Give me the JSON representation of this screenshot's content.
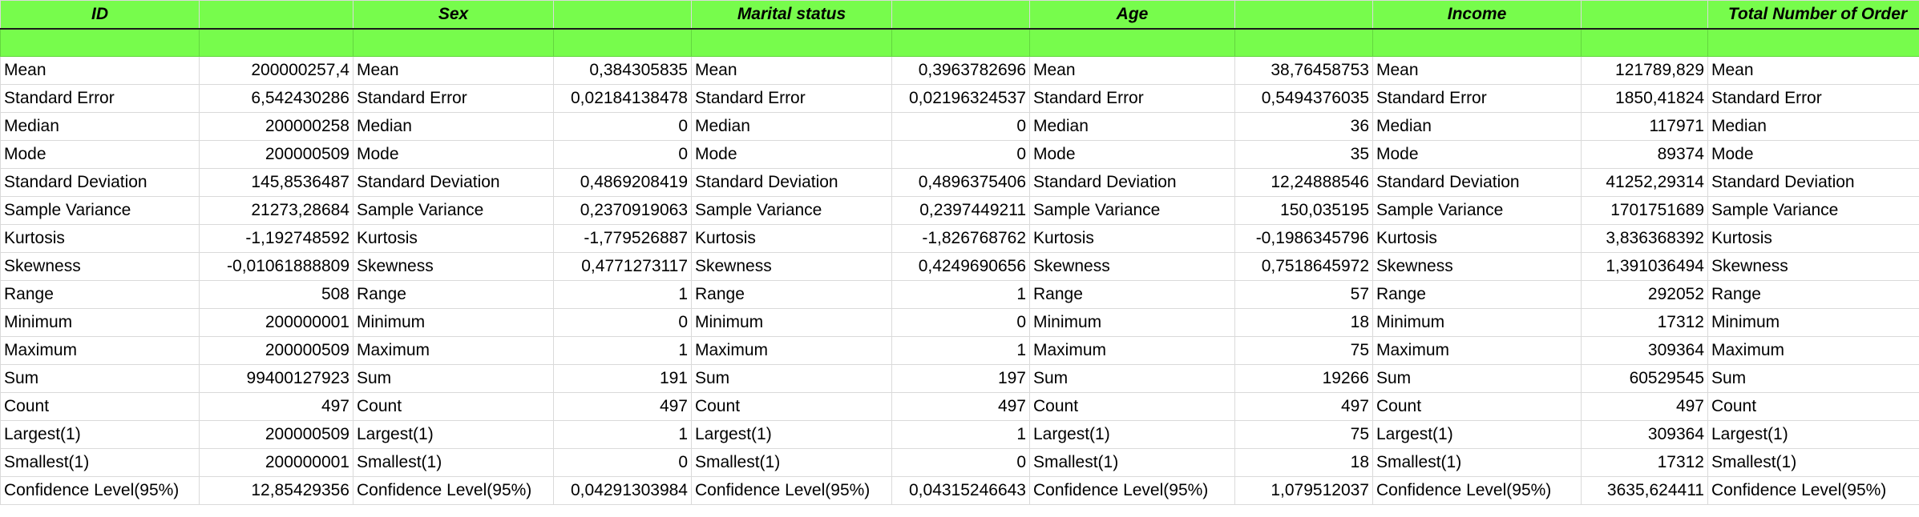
{
  "header": [
    "ID",
    "",
    "Sex",
    "",
    "Marital status",
    "",
    "Age",
    "",
    "Income",
    "",
    "Total Number of Order"
  ],
  "stat_labels": [
    "Mean",
    "Standard Error",
    "Median",
    "Mode",
    "Standard Deviation",
    "Sample Variance",
    "Kurtosis",
    "Skewness",
    "Range",
    "Minimum",
    "Maximum",
    "Sum",
    "Count",
    "Largest(1)",
    "Smallest(1)",
    "Confidence Level(95%)"
  ],
  "rows": [
    [
      "200000257,4",
      "0,384305835",
      "0,3963782696",
      "38,76458753",
      "121789,829"
    ],
    [
      "6,542430286",
      "0,02184138478",
      "0,02196324537",
      "0,5494376035",
      "1850,41824"
    ],
    [
      "200000258",
      "0",
      "0",
      "36",
      "117971"
    ],
    [
      "200000509",
      "0",
      "0",
      "35",
      "89374"
    ],
    [
      "145,8536487",
      "0,4869208419",
      "0,4896375406",
      "12,24888546",
      "41252,29314"
    ],
    [
      "21273,28684",
      "0,2370919063",
      "0,2397449211",
      "150,035195",
      "1701751689"
    ],
    [
      "-1,192748592",
      "-1,779526887",
      "-1,826768762",
      "-0,1986345796",
      "3,836368392"
    ],
    [
      "-0,01061888809",
      "0,4771273117",
      "0,4249690656",
      "0,7518645972",
      "1,391036494"
    ],
    [
      "508",
      "1",
      "1",
      "57",
      "292052"
    ],
    [
      "200000001",
      "0",
      "0",
      "18",
      "17312"
    ],
    [
      "200000509",
      "1",
      "1",
      "75",
      "309364"
    ],
    [
      "99400127923",
      "191",
      "197",
      "19266",
      "60529545"
    ],
    [
      "497",
      "497",
      "497",
      "497",
      "497"
    ],
    [
      "200000509",
      "1",
      "1",
      "75",
      "309364"
    ],
    [
      "200000001",
      "0",
      "0",
      "18",
      "17312"
    ],
    [
      "12,85429356",
      "0,04291303984",
      "0,04315246643",
      "1,079512037",
      "3635,624411"
    ]
  ]
}
